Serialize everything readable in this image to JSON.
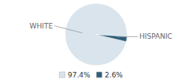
{
  "chart_data": {
    "type": "pie",
    "categories": [
      "WHITE",
      "HISPANIC"
    ],
    "values": [
      97.4,
      2.6
    ],
    "value_labels": [
      "97.4%",
      "2.6%"
    ],
    "colors": [
      "#d9e4ec",
      "#2e5f7a"
    ],
    "legend": "bottom"
  }
}
